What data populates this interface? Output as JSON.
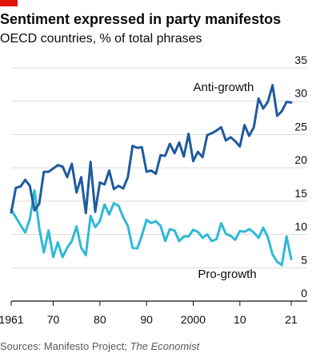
{
  "header": {
    "title": "Sentiment expressed in party manifestos",
    "subtitle": "OECD countries, % of total phrases"
  },
  "footer": {
    "source_prefix": "Sources: Manifesto Project; ",
    "source_publication": "The Economist"
  },
  "colors": {
    "brand_red": "#e3120b",
    "anti_growth": "#1f5b9e",
    "pro_growth": "#2fb9d6",
    "grid": "#d9d9d9",
    "axis": "#0c0c0c"
  },
  "chart_data": {
    "type": "line",
    "title": "Sentiment expressed in party manifestos",
    "subtitle": "OECD countries, % of total phrases",
    "xlabel": "",
    "ylabel": "",
    "xlim": [
      1961,
      2021
    ],
    "ylim": [
      0,
      35
    ],
    "y_ticks": [
      0,
      5,
      10,
      15,
      20,
      25,
      30,
      35
    ],
    "y_axis_position": "right",
    "grid": true,
    "x_ticks": [
      {
        "value": 1961,
        "label": "1961"
      },
      {
        "value": 1970,
        "label": "70"
      },
      {
        "value": 1980,
        "label": "80"
      },
      {
        "value": 1990,
        "label": "90"
      },
      {
        "value": 2000,
        "label": "2000"
      },
      {
        "value": 2010,
        "label": "10"
      },
      {
        "value": 2021,
        "label": "21"
      }
    ],
    "x": [
      1961,
      1962,
      1963,
      1964,
      1965,
      1966,
      1967,
      1968,
      1969,
      1970,
      1971,
      1972,
      1973,
      1974,
      1975,
      1976,
      1977,
      1978,
      1979,
      1980,
      1981,
      1982,
      1983,
      1984,
      1985,
      1986,
      1987,
      1988,
      1989,
      1990,
      1991,
      1992,
      1993,
      1994,
      1995,
      1996,
      1997,
      1998,
      1999,
      2000,
      2001,
      2002,
      2003,
      2004,
      2005,
      2006,
      2007,
      2008,
      2009,
      2010,
      2011,
      2012,
      2013,
      2014,
      2015,
      2016,
      2017,
      2018,
      2019,
      2020,
      2021
    ],
    "series": [
      {
        "name": "Anti-growth",
        "values": [
          13.3,
          17.0,
          17.2,
          18.2,
          17.3,
          13.6,
          14.6,
          19.4,
          19.4,
          19.9,
          20.4,
          20.2,
          18.6,
          20.6,
          16.3,
          18.6,
          13.2,
          20.9,
          13.4,
          17.8,
          17.5,
          19.6,
          16.8,
          17.3,
          16.9,
          18.6,
          23.3,
          23.0,
          23.1,
          19.4,
          19.6,
          19.1,
          21.9,
          21.8,
          23.6,
          22.2,
          23.8,
          21.7,
          25.1,
          21.0,
          22.4,
          21.6,
          24.9,
          25.2,
          25.6,
          26.1,
          24.1,
          24.6,
          24.0,
          23.2,
          26.4,
          24.8,
          26.1,
          30.4,
          28.9,
          29.9,
          32.4,
          27.8,
          28.5,
          29.9,
          29.8
        ],
        "end_label": "Anti-growth",
        "label_year": 2000,
        "label_value": 31.5
      },
      {
        "name": "Pro-growth",
        "values": [
          13.7,
          12.6,
          11.4,
          10.3,
          12.3,
          16.6,
          11.0,
          7.3,
          10.6,
          6.6,
          8.8,
          6.6,
          8.0,
          9.0,
          11.2,
          8.0,
          6.9,
          12.8,
          11.1,
          12.0,
          14.5,
          13.0,
          14.7,
          14.3,
          12.6,
          11.3,
          8.0,
          7.9,
          9.8,
          12.2,
          11.7,
          12.0,
          11.3,
          9.0,
          10.8,
          10.6,
          9.0,
          9.7,
          9.7,
          10.7,
          10.4,
          9.5,
          10.0,
          9.0,
          9.3,
          11.7,
          10.1,
          9.8,
          9.2,
          10.5,
          10.4,
          10.8,
          10.3,
          9.5,
          11.0,
          9.6,
          7.0,
          5.9,
          5.4,
          9.7,
          6.3
        ],
        "end_label": "Pro-growth",
        "label_year": 2001,
        "label_value": 3.5
      }
    ]
  }
}
